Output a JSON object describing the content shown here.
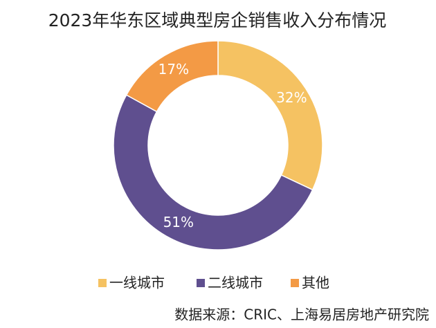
{
  "chart_data": {
    "type": "pie",
    "title": "2023年华东区域典型房企销售收入分布情况",
    "categories": [
      "一线城市",
      "二线城市",
      "其他"
    ],
    "values": [
      32,
      51,
      17
    ],
    "value_labels": [
      "32%",
      "51%",
      "17%"
    ],
    "colors": [
      "#f5c262",
      "#5f4f8f",
      "#f39a45"
    ],
    "donut": true,
    "legend": "bottom",
    "source": "数据来源：CRIC、上海易居房地产研究院"
  }
}
